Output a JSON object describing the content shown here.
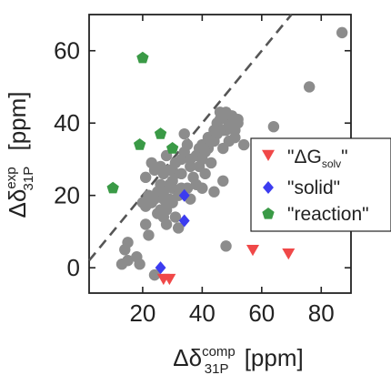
{
  "chart_data": {
    "type": "scatter",
    "title": "",
    "xlabel": {
      "prefix": "Δδ",
      "sub": "31P",
      "sup": "comp",
      "unit": " [ppm]"
    },
    "ylabel": {
      "prefix": "Δδ",
      "sub": "31P",
      "sup": "exp",
      "unit": " [ppm]"
    },
    "xlim": [
      2,
      90
    ],
    "ylim": [
      -7,
      70
    ],
    "xticks": [
      20,
      40,
      60,
      80
    ],
    "yticks": [
      0,
      20,
      40,
      60
    ],
    "xtick_labels": [
      "20",
      "40",
      "60",
      "80"
    ],
    "ytick_labels": [
      "0",
      "20",
      "40",
      "60"
    ],
    "grid": false,
    "legend_position": "center-right",
    "reference_line": {
      "style": "dashed",
      "color": "#555555",
      "slope": 1,
      "intercept": 0
    },
    "background_points": {
      "color": "#8c8c8c",
      "points": [
        [
          13,
          1
        ],
        [
          15,
          2
        ],
        [
          14,
          5
        ],
        [
          15,
          7
        ],
        [
          18,
          3
        ],
        [
          19,
          1
        ],
        [
          24,
          -2
        ],
        [
          22,
          9
        ],
        [
          21,
          12
        ],
        [
          21,
          17
        ],
        [
          23,
          18
        ],
        [
          22,
          20
        ],
        [
          21,
          25
        ],
        [
          24,
          19
        ],
        [
          25,
          15
        ],
        [
          26,
          16
        ],
        [
          27,
          14
        ],
        [
          24,
          27
        ],
        [
          26,
          28
        ],
        [
          26,
          23
        ],
        [
          27,
          21
        ],
        [
          28,
          16
        ],
        [
          28,
          18
        ],
        [
          29,
          19
        ],
        [
          29,
          23
        ],
        [
          30,
          22
        ],
        [
          30,
          24
        ],
        [
          31,
          26
        ],
        [
          31,
          29
        ],
        [
          31,
          14
        ],
        [
          32,
          20
        ],
        [
          33,
          22
        ],
        [
          33,
          26
        ],
        [
          33,
          30
        ],
        [
          34,
          32
        ],
        [
          35,
          34
        ],
        [
          36,
          30
        ],
        [
          36,
          28
        ],
        [
          37,
          25
        ],
        [
          38,
          31
        ],
        [
          39,
          33
        ],
        [
          39,
          28
        ],
        [
          40,
          34
        ],
        [
          40,
          30
        ],
        [
          40,
          22
        ],
        [
          41,
          26
        ],
        [
          42,
          36
        ],
        [
          42,
          33
        ],
        [
          43,
          29
        ],
        [
          44,
          35
        ],
        [
          44,
          38
        ],
        [
          45,
          37
        ],
        [
          45,
          40
        ],
        [
          46,
          41
        ],
        [
          46,
          43
        ],
        [
          47,
          38
        ],
        [
          47,
          33
        ],
        [
          48,
          38
        ],
        [
          48,
          41
        ],
        [
          48,
          43
        ],
        [
          49,
          39
        ],
        [
          49,
          35
        ],
        [
          50,
          42
        ],
        [
          50,
          40
        ],
        [
          51,
          38
        ],
        [
          51,
          36
        ],
        [
          52,
          41
        ],
        [
          52,
          40
        ],
        [
          54,
          34
        ],
        [
          44,
          21
        ],
        [
          47,
          24
        ],
        [
          48,
          6
        ],
        [
          64,
          39
        ],
        [
          76,
          50
        ],
        [
          87,
          65
        ],
        [
          23,
          29
        ],
        [
          20,
          18
        ],
        [
          27,
          26
        ],
        [
          28,
          12
        ],
        [
          28,
          31
        ],
        [
          25,
          21
        ],
        [
          29,
          27
        ],
        [
          35,
          22
        ],
        [
          36,
          19
        ],
        [
          34,
          37
        ],
        [
          38,
          23
        ],
        [
          32,
          11
        ],
        [
          30,
          18
        ],
        [
          27,
          19
        ],
        [
          43,
          35
        ],
        [
          41,
          32
        ]
      ]
    },
    "series": [
      {
        "name": "\"ΔG_solv\"",
        "marker": "triangle-down",
        "color": "#f04848",
        "points": [
          [
            27,
            -3
          ],
          [
            29,
            -3
          ],
          [
            57,
            5
          ],
          [
            69,
            4
          ]
        ]
      },
      {
        "name": "\"solid\"",
        "marker": "diamond",
        "color": "#3c3cf0",
        "points": [
          [
            26,
            0
          ],
          [
            34,
            13
          ],
          [
            34,
            20
          ]
        ]
      },
      {
        "name": "\"reaction\"",
        "marker": "pentagon",
        "color": "#3a9a46",
        "points": [
          [
            10,
            22
          ],
          [
            19,
            34
          ],
          [
            20,
            58
          ],
          [
            26,
            37
          ],
          [
            30,
            33
          ]
        ]
      }
    ]
  }
}
